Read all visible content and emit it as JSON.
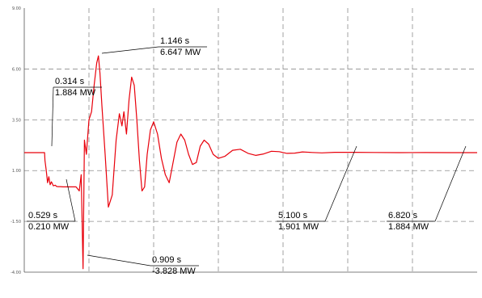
{
  "chart_data": {
    "type": "line",
    "title": "",
    "xlabel": "",
    "ylabel": "",
    "xlim": [
      0,
      7.0
    ],
    "ylim": [
      -4.0,
      9.0
    ],
    "grid": true,
    "grid_x": [
      1,
      2,
      3,
      4,
      5,
      6
    ],
    "y_ticks": [
      -4.0,
      -1.5,
      1.0,
      3.5,
      6.0,
      9.0
    ],
    "y_tick_labels": [
      "-4.00",
      "-1.50",
      "1.00",
      "3.50",
      "6.00",
      "9.00"
    ],
    "series_color": "#e8000b",
    "series": [
      {
        "x": [
          0.0,
          0.314,
          0.32,
          0.34,
          0.36,
          0.38,
          0.4,
          0.42,
          0.45,
          0.48,
          0.5,
          0.529,
          0.56,
          0.6,
          0.65,
          0.7,
          0.8,
          0.85,
          0.88,
          0.909,
          0.93,
          0.96,
          1.0,
          1.04,
          1.08,
          1.12,
          1.146,
          1.17,
          1.2,
          1.25,
          1.3,
          1.36,
          1.42,
          1.47,
          1.51,
          1.54,
          1.58,
          1.62,
          1.66,
          1.7,
          1.74,
          1.78,
          1.82,
          1.86,
          1.9,
          1.95,
          2.0,
          2.06,
          2.12,
          2.18,
          2.24,
          2.3,
          2.36,
          2.42,
          2.48,
          2.54,
          2.6,
          2.66,
          2.72,
          2.78,
          2.85,
          2.92,
          3.0,
          3.1,
          3.22,
          3.34,
          3.46,
          3.58,
          3.7,
          3.82,
          3.94,
          4.06,
          4.18,
          4.3,
          4.45,
          4.6,
          4.8,
          5.1,
          5.4,
          5.8,
          6.2,
          6.6,
          6.82,
          7.0
        ],
        "y": [
          1.884,
          1.884,
          1.5,
          1.0,
          0.4,
          0.7,
          0.3,
          0.45,
          0.25,
          0.28,
          0.22,
          0.21,
          0.21,
          0.2,
          0.2,
          0.2,
          0.2,
          0.0,
          0.8,
          -3.828,
          2.5,
          1.8,
          3.5,
          3.9,
          5.2,
          6.3,
          6.647,
          5.8,
          4.2,
          1.8,
          -0.8,
          -0.2,
          2.5,
          3.8,
          3.2,
          3.9,
          2.8,
          4.5,
          5.6,
          5.2,
          3.5,
          1.5,
          0.0,
          0.2,
          1.8,
          3.0,
          3.4,
          2.8,
          1.6,
          0.8,
          0.4,
          1.4,
          2.4,
          2.8,
          2.5,
          1.8,
          1.3,
          1.4,
          2.2,
          2.5,
          2.3,
          1.8,
          1.6,
          1.7,
          2.0,
          2.05,
          1.85,
          1.75,
          1.82,
          1.95,
          1.93,
          1.85,
          1.86,
          1.92,
          1.89,
          1.87,
          1.9,
          1.901,
          1.89,
          1.885,
          1.886,
          1.884,
          1.884,
          1.884
        ]
      }
    ],
    "annotations": [
      {
        "x": 0.314,
        "y": 1.884,
        "text_time": "0.314 s",
        "text_value": "1.884 MW"
      },
      {
        "x": 0.529,
        "y": 0.21,
        "text_time": "0.529 s",
        "text_value": "0.210 MW"
      },
      {
        "x": 0.909,
        "y": -3.828,
        "text_time": "0.909 s",
        "text_value": "-3.828 MW"
      },
      {
        "x": 1.146,
        "y": 6.647,
        "text_time": "1.146 s",
        "text_value": "6.647 MW"
      },
      {
        "x": 5.1,
        "y": 1.901,
        "text_time": "5.100 s",
        "text_value": "1.901 MW"
      },
      {
        "x": 6.82,
        "y": 1.884,
        "text_time": "6.820 s",
        "text_value": "1.884 MW"
      }
    ]
  }
}
